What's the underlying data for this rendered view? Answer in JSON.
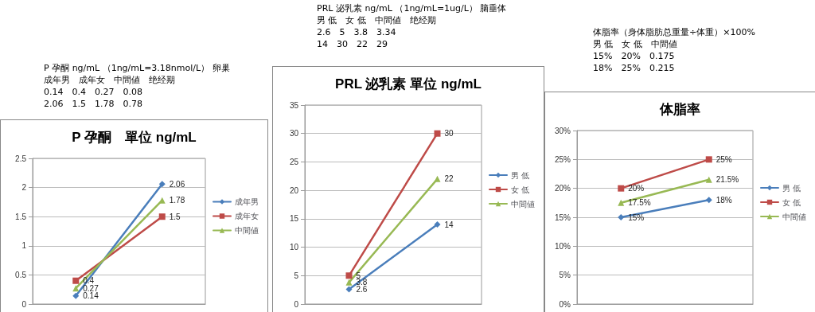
{
  "chart_data": [
    {
      "type": "line",
      "title": "P 孕酮　單位 ng/mL",
      "categories": [
        null,
        null
      ],
      "tick_labels": "y",
      "annotations": [
        "P 孕酮 ng/mL （1ng/mL=3.18nmol/L） 卵巢",
        "成年男　成年女　中間値　绝经期",
        "0.14　0.4　0.27　0.08",
        "2.06　1.5　1.78　0.78"
      ],
      "series": [
        {
          "name": "成年男",
          "color": "#4a7ebb",
          "marker": "diamond",
          "values": [
            0.14,
            2.06
          ]
        },
        {
          "name": "成年女",
          "color": "#be4b48",
          "marker": "square",
          "values": [
            0.4,
            1.5
          ]
        },
        {
          "name": "中間値",
          "color": "#98b954",
          "marker": "triangle",
          "values": [
            0.27,
            1.78
          ]
        }
      ],
      "ylim": [
        0,
        2.5
      ],
      "yticks": [
        0,
        0.5,
        1,
        1.5,
        2,
        2.5
      ],
      "grid": "y",
      "legend": "right",
      "data_labels": true,
      "line_style": "solid"
    },
    {
      "type": "line",
      "title": "PRL 泌乳素 單位 ng/mL",
      "categories": [
        null,
        null
      ],
      "tick_labels": "y",
      "annotations": [
        "PRL 泌乳素 ng/mL （1ng/mL=1ug/L） 脑垂体",
        "男 低　女 低　中間値　绝经期",
        "2.6　5　3.8　3.34",
        "14　30　22　29"
      ],
      "series": [
        {
          "name": "男 低",
          "color": "#4a7ebb",
          "marker": "diamond",
          "values": [
            2.6,
            14
          ]
        },
        {
          "name": "女 低",
          "color": "#be4b48",
          "marker": "square",
          "values": [
            5,
            30
          ]
        },
        {
          "name": "中間値",
          "color": "#98b954",
          "marker": "triangle",
          "values": [
            3.8,
            22
          ]
        }
      ],
      "ylim": [
        0,
        35
      ],
      "yticks": [
        0,
        5,
        10,
        15,
        20,
        25,
        30,
        35
      ],
      "grid": "y",
      "legend": "right",
      "data_labels": true,
      "line_style": "solid"
    },
    {
      "type": "line",
      "title": "体脂率",
      "categories": [
        null,
        null
      ],
      "tick_labels": "y",
      "annotations": [
        "体脂率（身体脂肪总重量÷体重）×100%",
        "男 低　女 低　中間値",
        "15%　20%　0.175",
        "18%　25%　0.215"
      ],
      "series": [
        {
          "name": "男 低",
          "color": "#4a7ebb",
          "marker": "diamond",
          "values": [
            15,
            18
          ],
          "value_labels": [
            "15%",
            "18%"
          ]
        },
        {
          "name": "女 低",
          "color": "#be4b48",
          "marker": "square",
          "values": [
            20,
            25
          ],
          "value_labels": [
            "20%",
            "25%"
          ]
        },
        {
          "name": "中間値",
          "color": "#98b954",
          "marker": "triangle",
          "values": [
            17.5,
            21.5
          ],
          "value_labels": [
            "17.5%",
            "21.5%"
          ]
        }
      ],
      "ylim": [
        0,
        30
      ],
      "yticks": [
        {
          "value": 0,
          "label": "0%"
        },
        {
          "value": 5,
          "label": "5%"
        },
        {
          "value": 10,
          "label": "10%"
        },
        {
          "value": 15,
          "label": "15%"
        },
        {
          "value": 20,
          "label": "20%"
        },
        {
          "value": 25,
          "label": "25%"
        },
        {
          "value": 30,
          "label": "30%"
        }
      ],
      "grid": "y",
      "legend": "right",
      "line_style": "solid"
    }
  ]
}
